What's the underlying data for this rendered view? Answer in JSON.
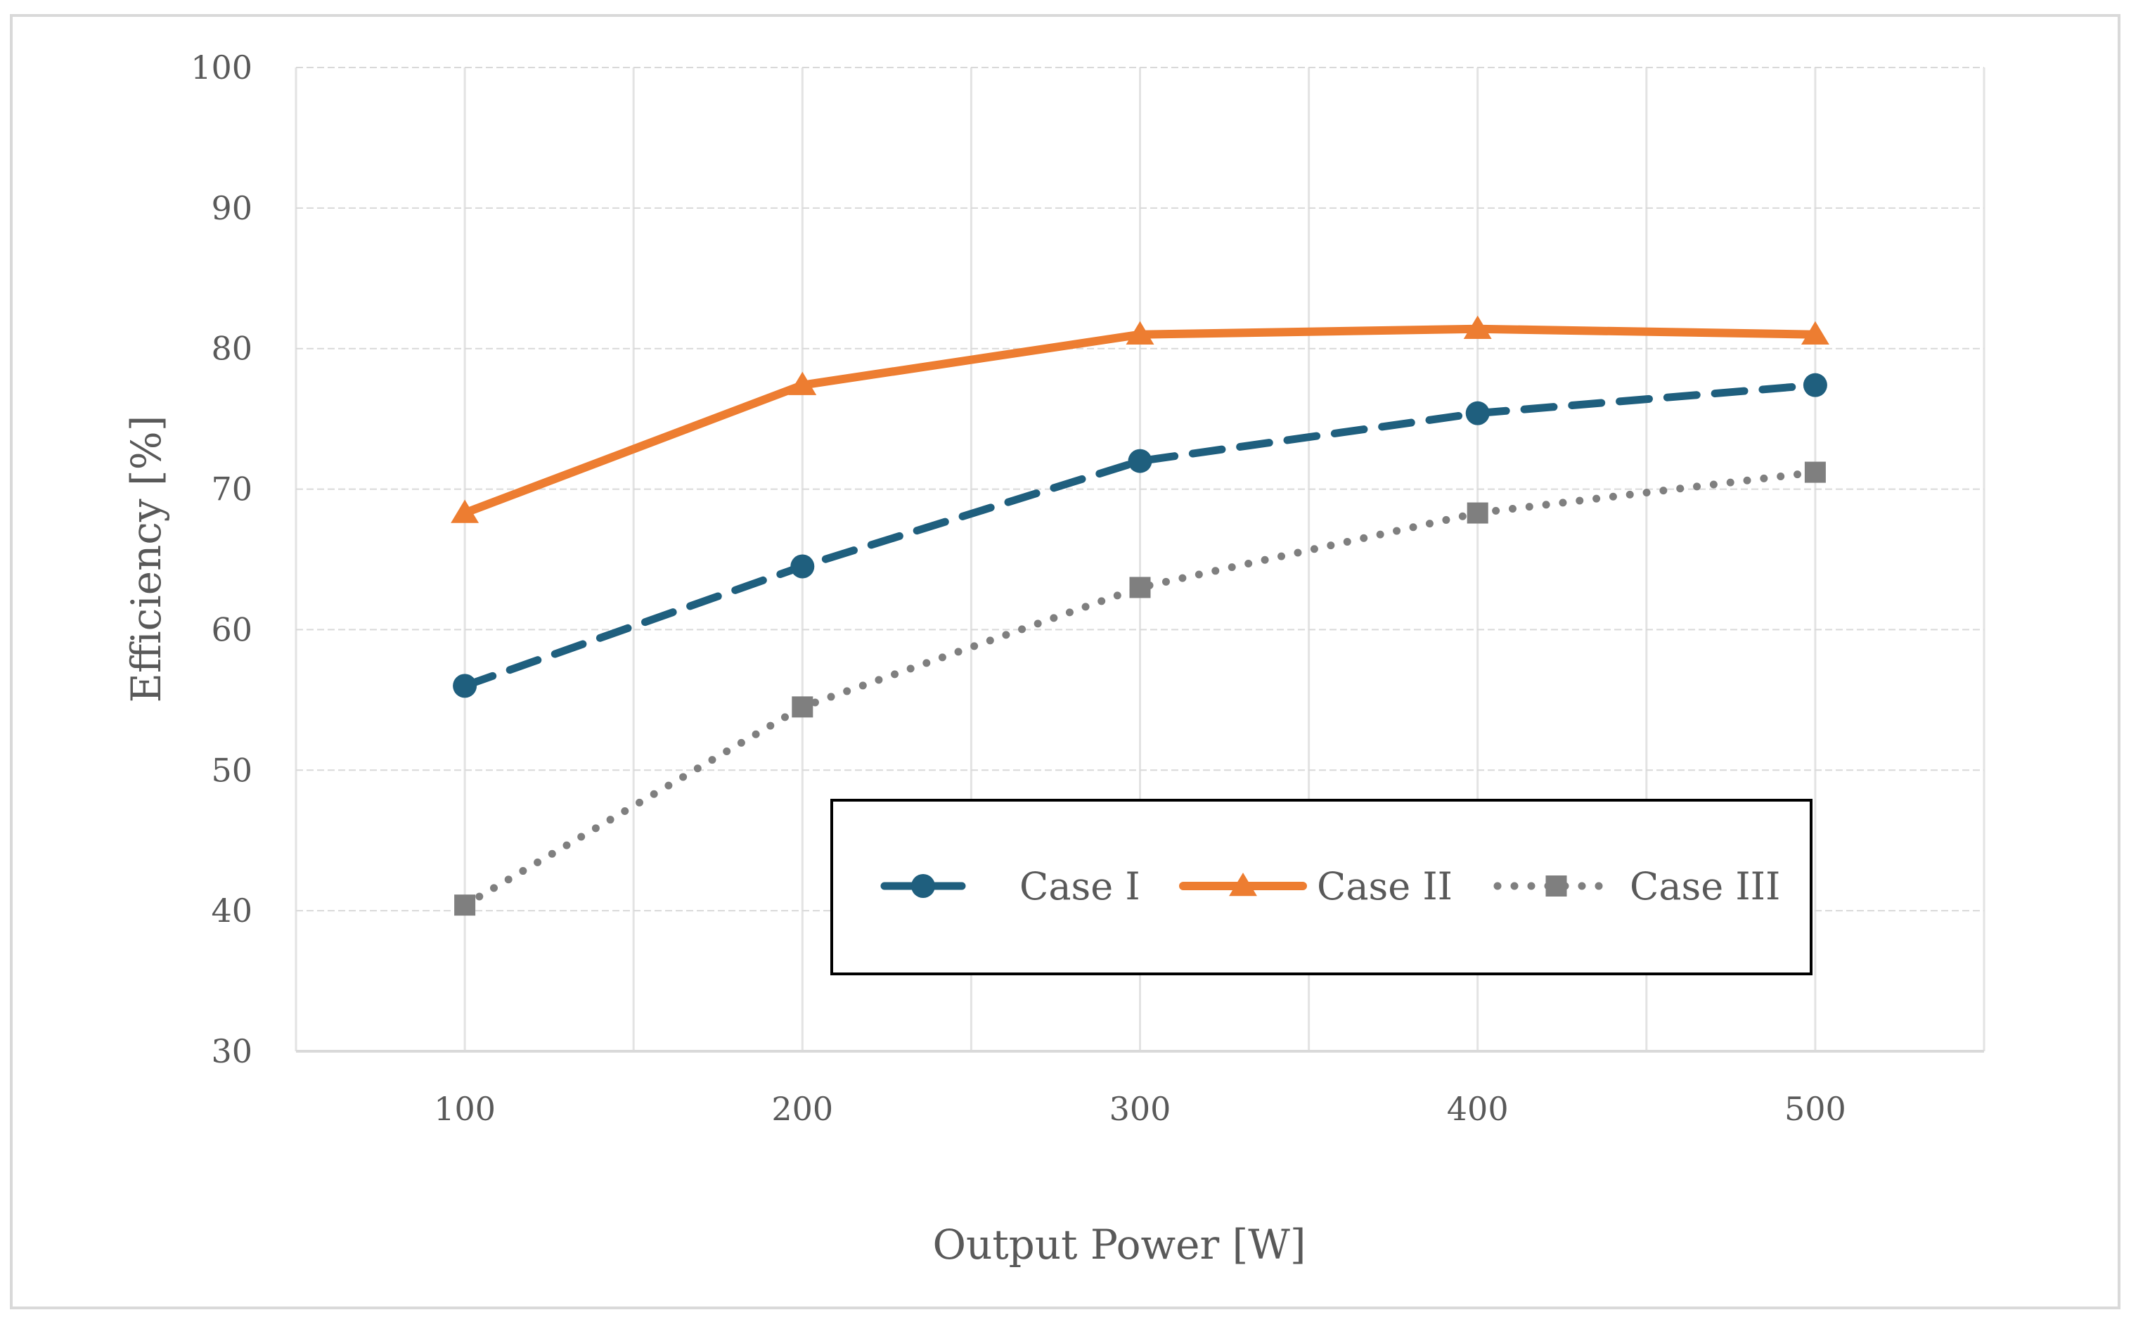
{
  "chart_data": {
    "type": "line",
    "title": "",
    "xlabel": "Output Power [W]",
    "ylabel": "Efficiency [%]",
    "x": [
      100,
      200,
      300,
      400,
      500
    ],
    "x_ticks": [
      "100",
      "200",
      "300",
      "400",
      "500"
    ],
    "y_ticks": [
      "30",
      "40",
      "50",
      "60",
      "70",
      "80",
      "90",
      "100"
    ],
    "xlim": [
      50,
      550
    ],
    "ylim": [
      30,
      100
    ],
    "grid": true,
    "legend_position": "bottom-right",
    "series": [
      {
        "name": "Case I",
        "values": [
          56.0,
          64.5,
          72.0,
          75.4,
          77.4
        ],
        "color": "#1f5f7e",
        "style": "dashed",
        "marker": "circle"
      },
      {
        "name": "Case II",
        "values": [
          68.3,
          77.4,
          81.0,
          81.4,
          81.0
        ],
        "color": "#ed7d31",
        "style": "solid",
        "marker": "triangle"
      },
      {
        "name": "Case III",
        "values": [
          40.4,
          54.5,
          63.0,
          68.3,
          71.2
        ],
        "color": "#7f7f7f",
        "style": "dotted",
        "marker": "square"
      }
    ]
  }
}
